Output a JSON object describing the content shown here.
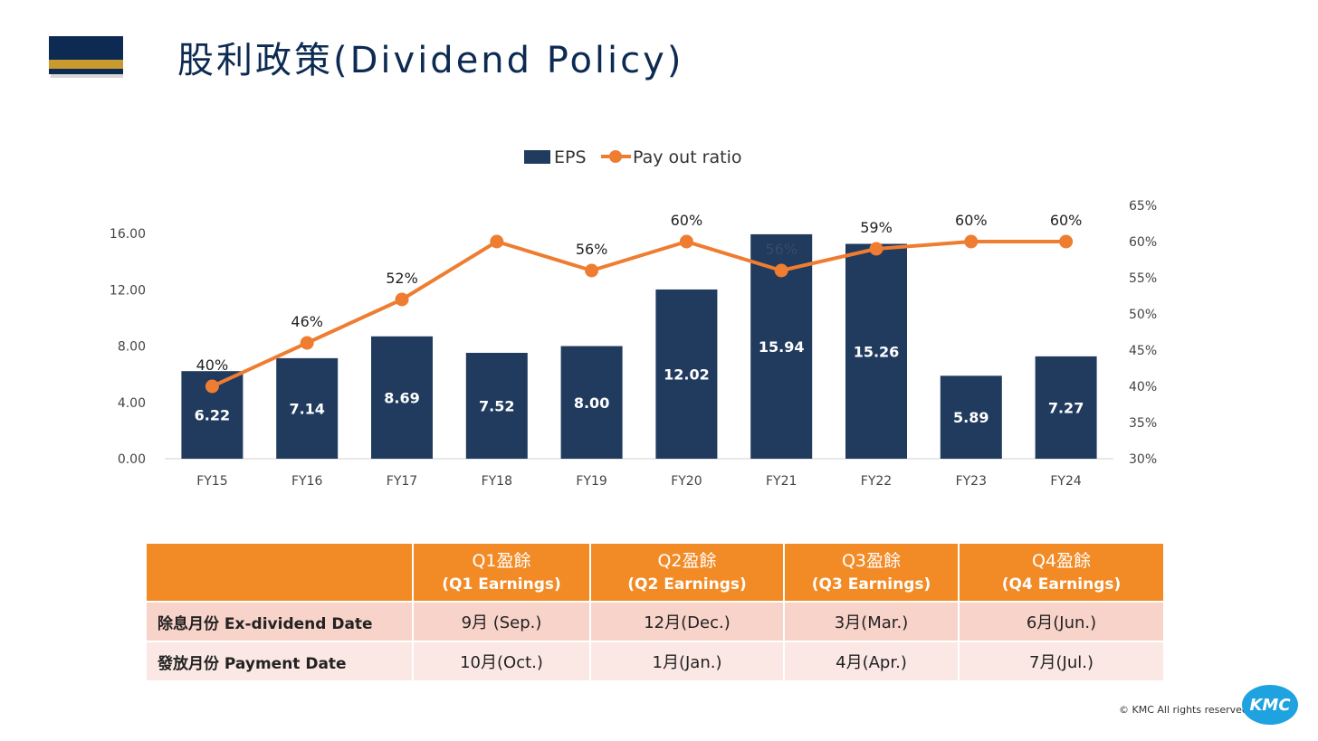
{
  "page_title": "股利政策(Dividend Policy)",
  "chart_data": {
    "type": "bar+line",
    "categories": [
      "FY15",
      "FY16",
      "FY17",
      "FY18",
      "FY19",
      "FY20",
      "FY21",
      "FY22",
      "FY23",
      "FY24"
    ],
    "series": [
      {
        "name": "EPS",
        "type": "bar",
        "axis": "left",
        "values": [
          6.22,
          7.14,
          8.69,
          7.52,
          8.0,
          12.02,
          15.94,
          15.26,
          5.89,
          7.27
        ],
        "labels": [
          "6.22",
          "7.14",
          "8.69",
          "7.52",
          "8.00",
          "12.02",
          "15.94",
          "15.26",
          "5.89",
          "7.27"
        ],
        "color": "#203b5e"
      },
      {
        "name": "Pay out ratio",
        "type": "line",
        "axis": "right",
        "values": [
          40,
          46,
          52,
          60,
          56,
          60,
          56,
          59,
          60,
          60
        ],
        "labels": [
          "40%",
          "46%",
          "52%",
          "",
          "56%",
          "60%",
          "56%",
          "59%",
          "60%",
          "60%"
        ],
        "color": "#ee7d31"
      }
    ],
    "left_axis": {
      "min": 0,
      "max": 16,
      "ticks": [
        0,
        4,
        8,
        12,
        16
      ],
      "tick_labels": [
        "0.00",
        "4.00",
        "8.00",
        "12.00",
        "16.00"
      ]
    },
    "right_axis": {
      "min": 30,
      "max": 65,
      "ticks": [
        30,
        35,
        40,
        45,
        50,
        55,
        60,
        65
      ],
      "tick_labels": [
        "30%",
        "35%",
        "40%",
        "45%",
        "50%",
        "55%",
        "60%",
        "65%"
      ]
    },
    "legend": {
      "placement": "top-center",
      "items": [
        "EPS",
        "Pay out ratio"
      ]
    },
    "grid": false
  },
  "table": {
    "header": [
      "",
      {
        "line1": "Q1盈餘",
        "line2": "(Q1 Earnings)"
      },
      {
        "line1": "Q2盈餘",
        "line2": "(Q2 Earnings)"
      },
      {
        "line1": "Q3盈餘",
        "line2": "(Q3 Earnings)"
      },
      {
        "line1": "Q4盈餘",
        "line2": "(Q4 Earnings)"
      }
    ],
    "rows": [
      {
        "label": "除息月份 Ex-dividend Date",
        "cells": [
          "9月 (Sep.)",
          "12月(Dec.)",
          "3月(Mar.)",
          "6月(Jun.)"
        ]
      },
      {
        "label": "發放月份 Payment Date",
        "cells": [
          "10月(Oct.)",
          "1月(Jan.)",
          "4月(Apr.)",
          "7月(Jul.)"
        ]
      }
    ]
  },
  "footer": {
    "copyright": "© KMC All rights reserved",
    "logo_text": "KMC"
  },
  "colors": {
    "navy": "#0d2a52",
    "gold": "#c99a2e",
    "orange": "#f28a25",
    "bar": "#203b5e",
    "line": "#ee7d31"
  }
}
